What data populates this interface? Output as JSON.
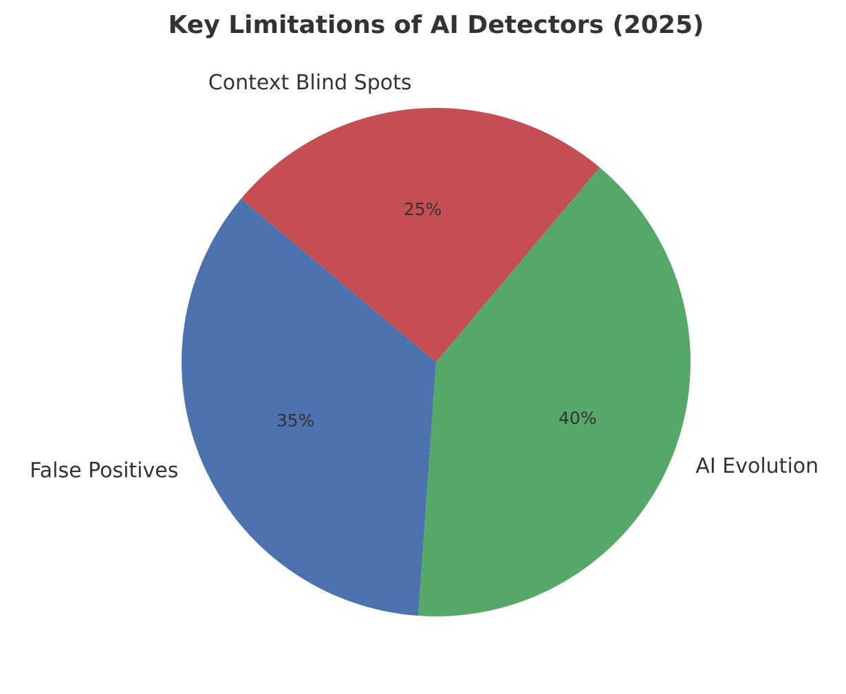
{
  "chart_data": {
    "type": "pie",
    "title": "Key Limitations of AI Detectors (2025)",
    "categories": [
      "False Positives",
      "AI Evolution",
      "Context Blind Spots"
    ],
    "values": [
      35,
      40,
      25
    ],
    "value_labels": [
      "35%",
      "40%",
      "25%"
    ],
    "colors": [
      "#4c72b0",
      "#55a868",
      "#c44e52"
    ]
  }
}
